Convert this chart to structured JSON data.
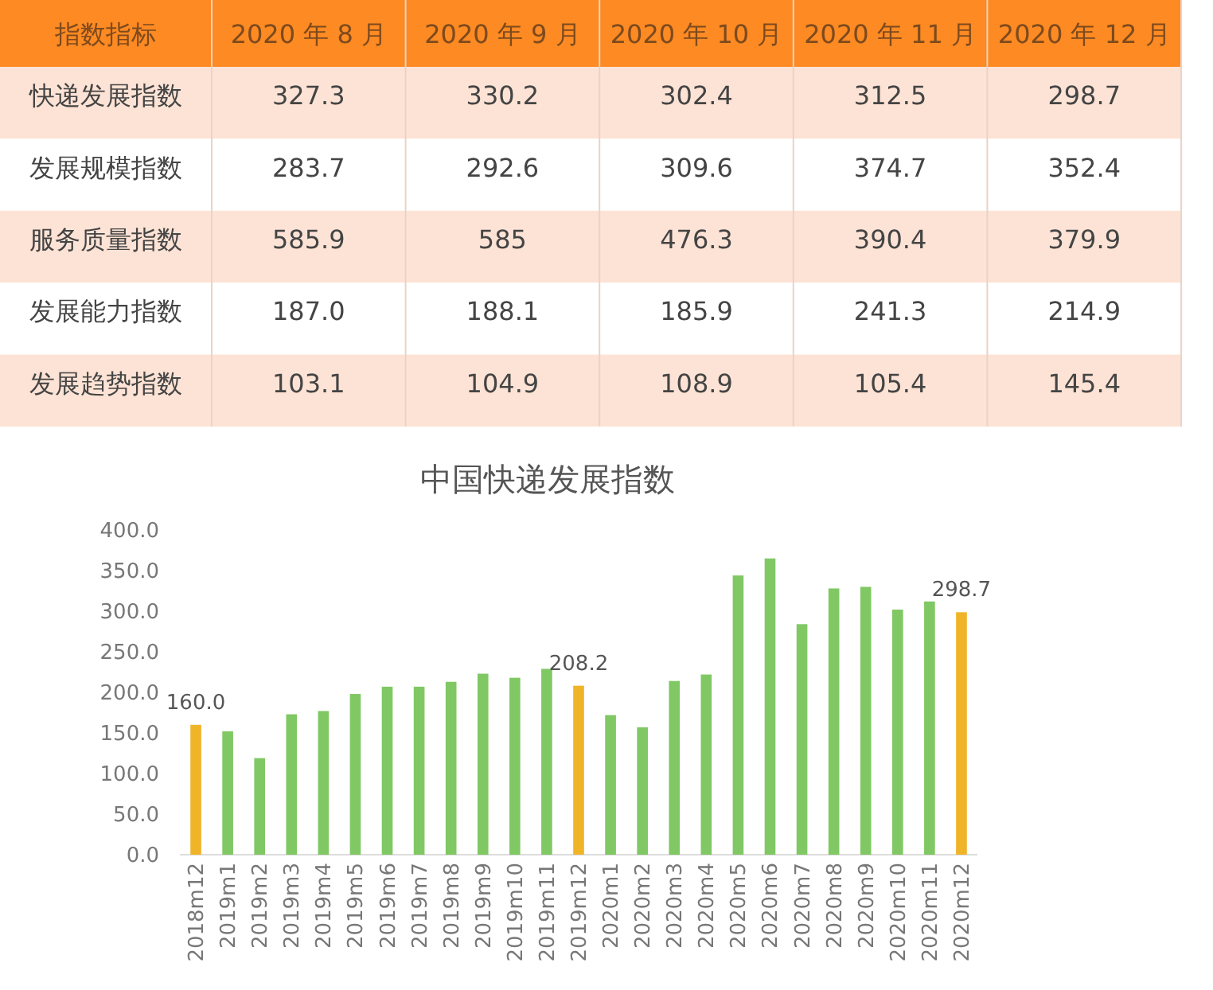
{
  "chart_data": [
    {
      "type": "heatmap",
      "ylabel": "指数指标",
      "categories": [
        "2020 年 8 月",
        "2020 年 9 月",
        "2020 年 10 月",
        "2020 年 11 月",
        "2020 年 12 月"
      ],
      "y_categories": [
        "快递发展指数",
        "发展规模指数",
        "服务质量指数",
        "发展能力指数",
        "发展趋势指数"
      ],
      "cells": [
        [
          327.3,
          330.2,
          302.4,
          312.5,
          298.7
        ],
        [
          283.7,
          292.6,
          309.6,
          374.7,
          352.4
        ],
        [
          585.9,
          585,
          476.3,
          390.4,
          379.9
        ],
        [
          187.0,
          188.1,
          185.9,
          241.3,
          214.9
        ],
        [
          103.1,
          104.9,
          108.9,
          105.4,
          145.4
        ]
      ],
      "cell_labels": [
        [
          "327.3",
          "330.2",
          "302.4",
          "312.5",
          "298.7"
        ],
        [
          "283.7",
          "292.6",
          "309.6",
          "374.7",
          "352.4"
        ],
        [
          "585.9",
          "585",
          "476.3",
          "390.4",
          "379.9"
        ],
        [
          "187.0",
          "188.1",
          "185.9",
          "241.3",
          "214.9"
        ],
        [
          "103.1",
          "104.9",
          "108.9",
          "105.4",
          "145.4"
        ]
      ]
    },
    {
      "type": "bar",
      "title": "中国快递发展指数",
      "categories": [
        "2018m12",
        "2019m1",
        "2019m2",
        "2019m3",
        "2019m4",
        "2019m5",
        "2019m6",
        "2019m7",
        "2019m8",
        "2019m9",
        "2019m10",
        "2019m11",
        "2019m12",
        "2020m1",
        "2020m2",
        "2020m3",
        "2020m4",
        "2020m5",
        "2020m6",
        "2020m7",
        "2020m8",
        "2020m9",
        "2020m10",
        "2020m11",
        "2020m12"
      ],
      "values": [
        160.0,
        152,
        119,
        173,
        177,
        198,
        207,
        207,
        213,
        223,
        218,
        229,
        208.2,
        172,
        157,
        214,
        222,
        344,
        365,
        284,
        328,
        330,
        302,
        312,
        298.7
      ],
      "colors": [
        "#f0b429",
        "#80c864",
        "#80c864",
        "#80c864",
        "#80c864",
        "#80c864",
        "#80c864",
        "#80c864",
        "#80c864",
        "#80c864",
        "#80c864",
        "#80c864",
        "#f0b429",
        "#80c864",
        "#80c864",
        "#80c864",
        "#80c864",
        "#80c864",
        "#80c864",
        "#80c864",
        "#80c864",
        "#80c864",
        "#80c864",
        "#80c864",
        "#f0b429"
      ],
      "value_labels": [
        "160.0",
        null,
        null,
        null,
        null,
        null,
        null,
        null,
        null,
        null,
        null,
        null,
        "208.2",
        null,
        null,
        null,
        null,
        null,
        null,
        null,
        null,
        null,
        null,
        null,
        "298.7"
      ],
      "ylim": [
        0,
        400
      ],
      "yticks": [
        {
          "value": 0,
          "label": "0.0"
        },
        {
          "value": 50,
          "label": "50.0"
        },
        {
          "value": 100,
          "label": "100.0"
        },
        {
          "value": 150,
          "label": "150.0"
        },
        {
          "value": 200,
          "label": "200.0"
        },
        {
          "value": 250,
          "label": "250.0"
        },
        {
          "value": 300,
          "label": "300.0"
        },
        {
          "value": 350,
          "label": "350.0"
        },
        {
          "value": 400,
          "label": "400.0"
        }
      ]
    }
  ]
}
